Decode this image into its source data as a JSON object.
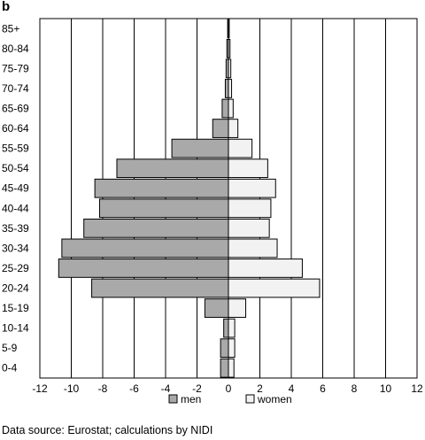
{
  "panel_label": "b",
  "source_note": "Data source: Eurostat; calculations by NIDI",
  "colors": {
    "men": "#a9a9a9",
    "women": "#f2f2f2",
    "outline": "#000000"
  },
  "chart_data": {
    "type": "bar",
    "orientation": "horizontal",
    "title": "",
    "xlabel": "",
    "ylabel": "",
    "xlim": [
      -12,
      12
    ],
    "x_ticks": [
      -12,
      -10,
      -8,
      -6,
      -4,
      -2,
      0,
      2,
      4,
      6,
      8,
      10,
      12
    ],
    "grid": "vertical",
    "legend": "bottom",
    "categories": [
      "0-4",
      "5-9",
      "10-14",
      "15-19",
      "20-24",
      "25-29",
      "30-34",
      "35-39",
      "40-44",
      "45-49",
      "50-54",
      "55-59",
      "60-64",
      "65-69",
      "70-74",
      "75-79",
      "80-84",
      "85+"
    ],
    "series": [
      {
        "name": "men",
        "values": [
          -0.5,
          -0.5,
          -0.3,
          -1.5,
          -8.7,
          -10.8,
          -10.6,
          -9.2,
          -8.2,
          -8.5,
          -7.1,
          -3.6,
          -1.0,
          -0.4,
          -0.2,
          -0.15,
          -0.1,
          -0.05
        ]
      },
      {
        "name": "women",
        "values": [
          0.35,
          0.4,
          0.4,
          1.1,
          5.8,
          4.7,
          3.1,
          2.6,
          2.7,
          3.0,
          2.5,
          1.5,
          0.6,
          0.3,
          0.2,
          0.15,
          0.1,
          0.05
        ]
      }
    ]
  }
}
